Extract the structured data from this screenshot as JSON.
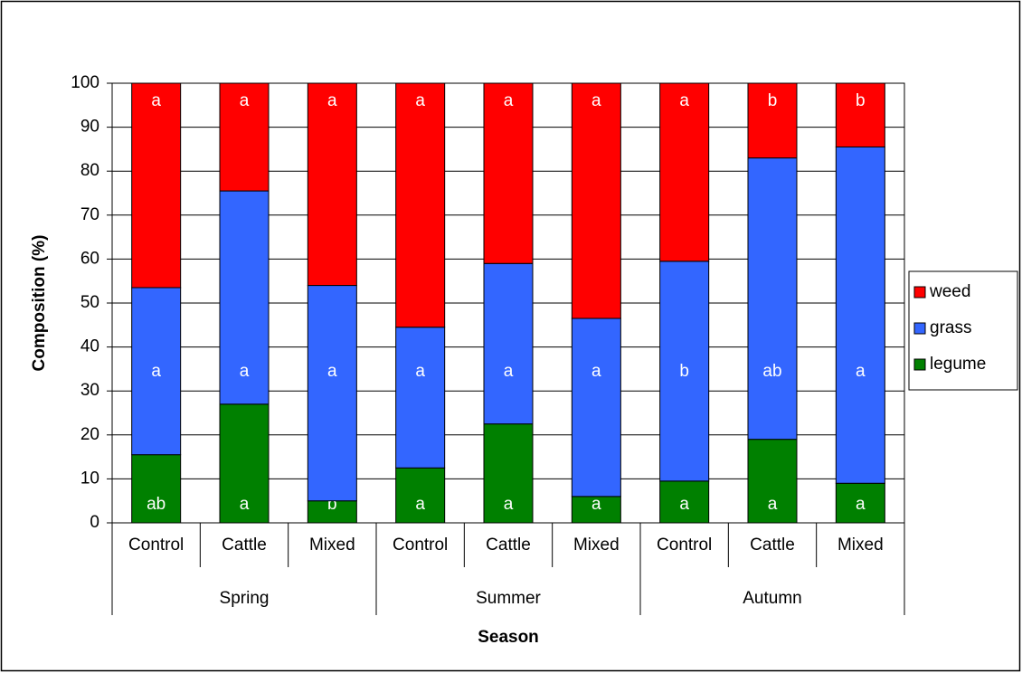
{
  "chart_data": {
    "type": "stacked_bar",
    "ylabel": "Composition (%)",
    "xlabel": "Season",
    "groups": [
      {
        "name": "Spring",
        "categories": [
          "Control",
          "Cattle",
          "Mixed"
        ]
      },
      {
        "name": "Summer",
        "categories": [
          "Control",
          "Cattle",
          "Mixed"
        ]
      },
      {
        "name": "Autumn",
        "categories": [
          "Control",
          "Cattle",
          "Mixed"
        ]
      }
    ],
    "series": [
      {
        "name": "legume",
        "color": "#008000",
        "values": [
          15.5,
          27,
          5,
          12.5,
          22.5,
          6,
          9.5,
          19,
          9
        ],
        "labels": [
          "ab",
          "a",
          "b",
          "a",
          "a",
          "a",
          "a",
          "a",
          "a"
        ]
      },
      {
        "name": "grass",
        "color": "#3366ff",
        "values": [
          38,
          48.5,
          49,
          32,
          36.5,
          40.5,
          50,
          64,
          76.5
        ],
        "labels": [
          "a",
          "a",
          "a",
          "a",
          "a",
          "a",
          "b",
          "ab",
          "a"
        ]
      },
      {
        "name": "weed",
        "color": "#ff0000",
        "values": [
          46.5,
          24.5,
          46,
          55.5,
          41,
          53.5,
          40.5,
          17,
          14.5
        ],
        "labels": [
          "a",
          "a",
          "a",
          "a",
          "a",
          "a",
          "a",
          "b",
          "b"
        ]
      }
    ],
    "ylim": [
      0,
      100
    ],
    "yticks": [
      0,
      10,
      20,
      30,
      40,
      50,
      60,
      70,
      80,
      90,
      100
    ],
    "grid": true,
    "legend": "right"
  }
}
